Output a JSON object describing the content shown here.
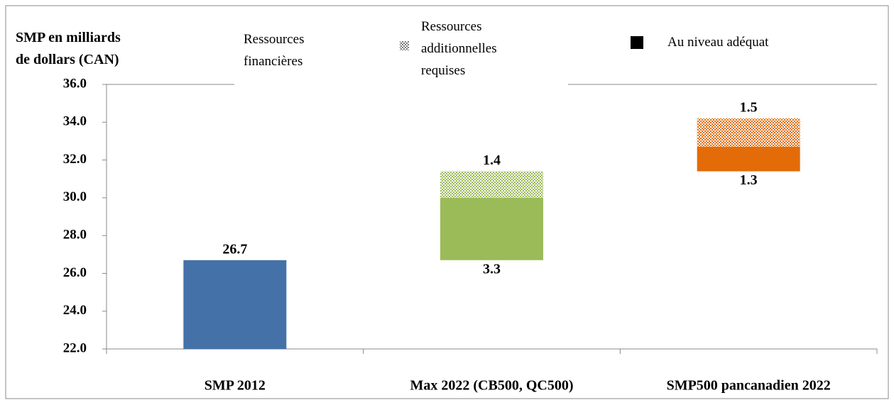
{
  "chart_data": {
    "type": "waterfall",
    "y_label": [
      "SMP en milliards",
      "de dollars (CAN)"
    ],
    "categories": [
      "SMP 2012",
      "Max 2022 (CB500, QC500)",
      "SMP500 pancanadien 2022"
    ],
    "series": [
      {
        "name": "Ressources financières",
        "color": "none",
        "values": [
          26.7,
          26.7,
          31.4
        ],
        "colors": [
          "#4472a8",
          "none",
          "none"
        ]
      },
      {
        "name": "Ressources additionnelles requises",
        "color": "#808080",
        "pattern": "hatch",
        "values": [
          null,
          1.4,
          1.5
        ],
        "colors": [
          null,
          "#9bbb59",
          "#e36c09"
        ]
      },
      {
        "name": "Au niveau adéquat",
        "color": "#000000",
        "values": [
          null,
          3.3,
          1.3
        ],
        "colors": [
          null,
          "#9bbb59",
          "#e36c09"
        ]
      }
    ],
    "stack_order": [
      0,
      2,
      1
    ],
    "ylim": [
      22,
      36
    ],
    "yticks": [
      {
        "value": 22,
        "label": "22.0"
      },
      {
        "value": 24,
        "label": "24.0"
      },
      {
        "value": 26,
        "label": "26.0"
      },
      {
        "value": 28,
        "label": "28.0"
      },
      {
        "value": 30,
        "label": "30.0"
      },
      {
        "value": 32,
        "label": "32.0"
      },
      {
        "value": 34,
        "label": "34.0"
      },
      {
        "value": 36,
        "label": "36.0"
      }
    ],
    "grid": false
  }
}
